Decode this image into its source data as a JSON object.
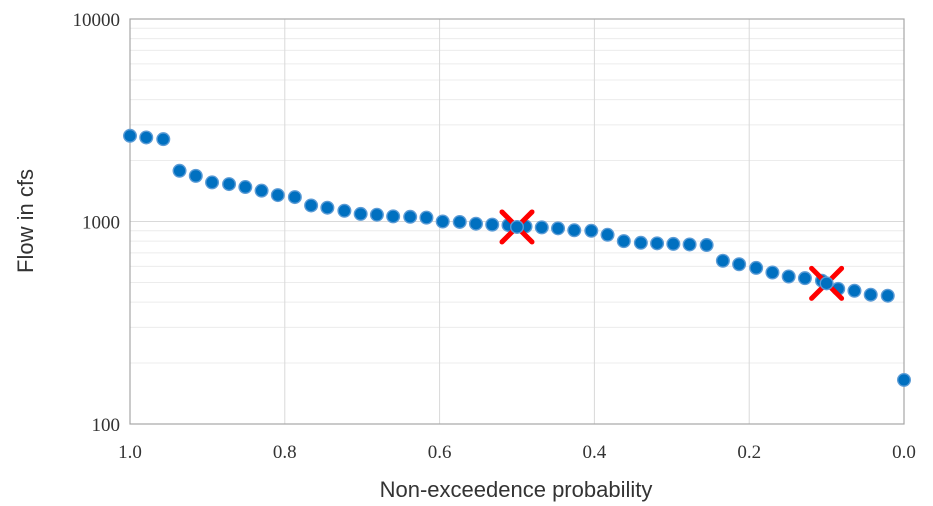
{
  "chart_data": {
    "type": "scatter",
    "title": "",
    "xlabel": "Non-exceedence probability",
    "ylabel": "Flow in cfs",
    "xlim": [
      1.0,
      0.0
    ],
    "x_reversed": true,
    "ylim": [
      100,
      10000
    ],
    "y_scale": "log",
    "grid": true,
    "x_ticks": [
      "1.0",
      "0.8",
      "0.6",
      "0.4",
      "0.2",
      "0.0"
    ],
    "y_ticks": [
      "100",
      "1000",
      "10000"
    ],
    "colors": {
      "point": "#0070C0",
      "point_edge": "#5B9BD5",
      "marker_x": "#FF0000",
      "grid": "#d9d9d9",
      "frame": "#a6a6a6"
    },
    "series": [
      {
        "marker": "circle",
        "points": [
          [
            1.0,
            2650
          ],
          [
            0.979,
            2600
          ],
          [
            0.957,
            2550
          ],
          [
            0.936,
            1780
          ],
          [
            0.915,
            1680
          ],
          [
            0.894,
            1560
          ],
          [
            0.872,
            1530
          ],
          [
            0.851,
            1480
          ],
          [
            0.83,
            1420
          ],
          [
            0.809,
            1350
          ],
          [
            0.787,
            1320
          ],
          [
            0.766,
            1200
          ],
          [
            0.745,
            1170
          ],
          [
            0.723,
            1130
          ],
          [
            0.702,
            1090
          ],
          [
            0.681,
            1080
          ],
          [
            0.66,
            1060
          ],
          [
            0.638,
            1055
          ],
          [
            0.617,
            1045
          ],
          [
            0.596,
            1000
          ],
          [
            0.574,
            995
          ],
          [
            0.553,
            975
          ],
          [
            0.532,
            965
          ],
          [
            0.511,
            960
          ],
          [
            0.489,
            945
          ],
          [
            0.468,
            935
          ],
          [
            0.447,
            925
          ],
          [
            0.426,
            905
          ],
          [
            0.404,
            900
          ],
          [
            0.383,
            860
          ],
          [
            0.362,
            800
          ],
          [
            0.34,
            785
          ],
          [
            0.319,
            780
          ],
          [
            0.298,
            775
          ],
          [
            0.277,
            770
          ],
          [
            0.255,
            765
          ],
          [
            0.234,
            640
          ],
          [
            0.213,
            615
          ],
          [
            0.191,
            590
          ],
          [
            0.17,
            560
          ],
          [
            0.149,
            535
          ],
          [
            0.128,
            525
          ],
          [
            0.106,
            510
          ],
          [
            0.085,
            465
          ],
          [
            0.064,
            455
          ],
          [
            0.043,
            435
          ],
          [
            0.021,
            430
          ],
          [
            0.0,
            165
          ]
        ]
      },
      {
        "marker": "x",
        "points": [
          [
            0.5,
            940
          ],
          [
            0.1,
            495
          ]
        ]
      }
    ]
  }
}
